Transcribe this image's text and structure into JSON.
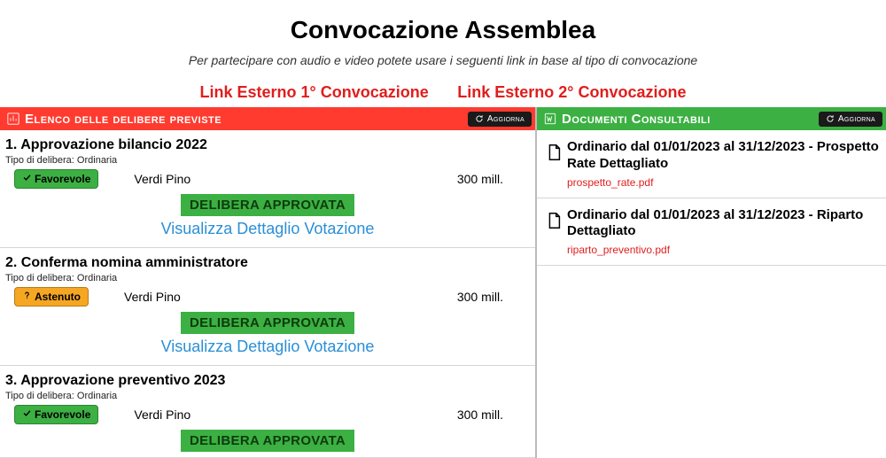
{
  "page": {
    "title": "Convocazione Assemblea",
    "subtitle": "Per partecipare con audio e video potete usare i seguenti link in base al tipo di convocazione"
  },
  "external_links": {
    "first": "Link Esterno 1° Convocazione",
    "second": "Link Esterno 2° Convocazione",
    "color": "#e11d1d"
  },
  "panels": {
    "delibere": {
      "title": "Elenco delle delibere previste",
      "header_bg": "#ff3b30",
      "refresh_label": "Aggiorna"
    },
    "documenti": {
      "title": "Documenti Consultabili",
      "header_bg": "#3cb043",
      "refresh_label": "Aggiorna"
    }
  },
  "labels": {
    "tipo_prefix": "Tipo di delibera:",
    "stamp_approved": "DELIBERA APPROVATA",
    "detail_link": "Visualizza Dettaglio Votazione"
  },
  "vote_badge": {
    "favorevole": {
      "label": "Favorevole",
      "bg": "#3cb043"
    },
    "astenuto": {
      "label": "Astenuto",
      "bg": "#f5a623"
    }
  },
  "delibere": [
    {
      "title": "1. Approvazione bilancio 2022",
      "tipo": "Ordinaria",
      "vote": "favorevole",
      "voter": "Verdi Pino",
      "millesimi": "300 mill.",
      "approved": true
    },
    {
      "title": "2. Conferma nomina amministratore",
      "tipo": "Ordinaria",
      "vote": "astenuto",
      "voter": "Verdi Pino",
      "millesimi": "300 mill.",
      "approved": true
    },
    {
      "title": "3. Approvazione preventivo 2023",
      "tipo": "Ordinaria",
      "vote": "favorevole",
      "voter": "Verdi Pino",
      "millesimi": "300 mill.",
      "approved": true
    }
  ],
  "documenti": [
    {
      "title": "Ordinario dal 01/01/2023 al 31/12/2023 - Prospetto Rate Dettagliato",
      "file": "prospetto_rate.pdf"
    },
    {
      "title": "Ordinario dal 01/01/2023 al 31/12/2023 - Riparto Dettagliato",
      "file": "riparto_preventivo.pdf"
    }
  ],
  "colors": {
    "link_blue": "#2a8fd6",
    "stamp_bg": "#3cb043",
    "stamp_text": "#0d3b0d",
    "border": "#d6d6d6"
  }
}
